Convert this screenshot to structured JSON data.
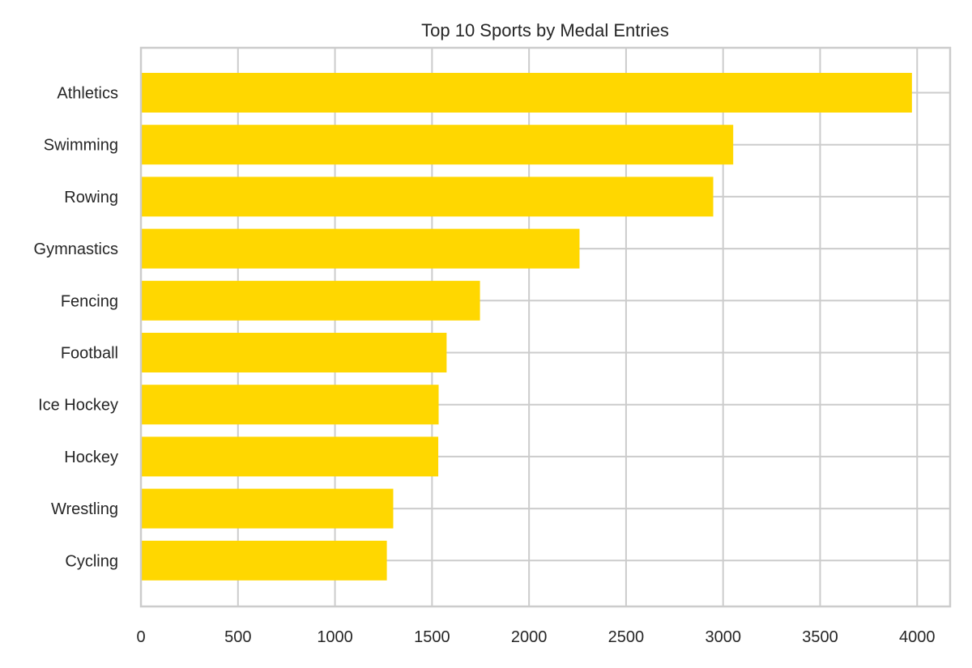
{
  "chart_data": {
    "type": "bar",
    "orientation": "horizontal",
    "title": "Top 10 Sports by Medal Entries",
    "xlabel": "",
    "ylabel": "",
    "categories": [
      "Athletics",
      "Swimming",
      "Rowing",
      "Gymnastics",
      "Fencing",
      "Football",
      "Ice Hockey",
      "Hockey",
      "Wrestling",
      "Cycling"
    ],
    "values": [
      3969,
      3048,
      2945,
      2256,
      1743,
      1571,
      1530,
      1528,
      1296,
      1263
    ],
    "xlim": [
      0,
      4170
    ],
    "xticks": [
      0,
      500,
      1000,
      1500,
      2000,
      2500,
      3000,
      3500,
      4000
    ],
    "grid": true,
    "bar_color": "#FFD700"
  }
}
